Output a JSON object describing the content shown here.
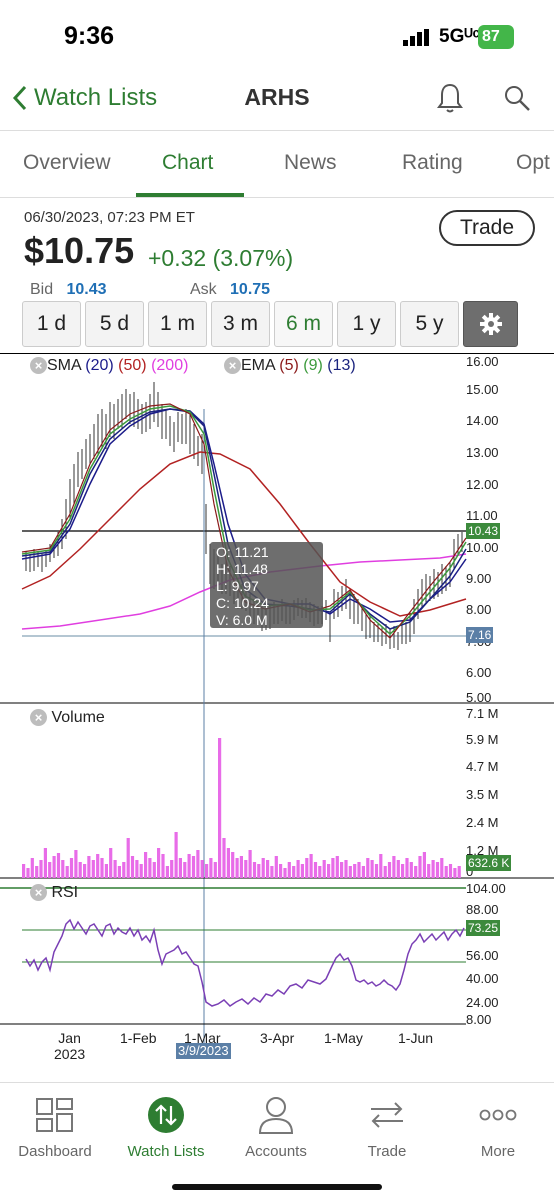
{
  "status_bar": {
    "time": "9:36",
    "network": "5Gᵁᶜ",
    "battery": "87"
  },
  "nav": {
    "back_label": "Watch Lists",
    "title": "ARHS"
  },
  "tabs": [
    "Overview",
    "Chart",
    "News",
    "Rating",
    "Opt"
  ],
  "quote": {
    "datetime": "06/30/2023, 07:23 PM ET",
    "price": "$10.75",
    "change": "+0.32",
    "change_pct": "(3.07%)",
    "trade_label": "Trade",
    "bid_label": "Bid",
    "bid": "10.43",
    "ask_label": "Ask",
    "ask": "10.75"
  },
  "ranges": [
    "1 d",
    "5 d",
    "1 m",
    "3 m",
    "6 m",
    "1 y",
    "5 y"
  ],
  "active_range": "6 m",
  "indicators": {
    "sma_label": "SMA",
    "sma_periods": [
      "(20)",
      "(50)",
      "(200)"
    ],
    "ema_label": "EMA",
    "ema_periods": [
      "(5)",
      "(9)",
      "(13)"
    ],
    "volume_label": "Volume",
    "rsi_label": "RSI"
  },
  "colors": {
    "green": "#2e7d32",
    "blue": "#1f6fb5",
    "sma20": "#1c1c8a",
    "sma50": "#b22222",
    "sma200": "#e03ee0",
    "ema5": "#8b1a1a",
    "ema9": "#3c9a3c",
    "ema13": "#1a237e",
    "volume": "#e86ce8",
    "rsi": "#7a3fb5"
  },
  "tooltip": {
    "o": "O: 11.21",
    "h": "H: 11.48",
    "l": "L: 9.97",
    "c": "C: 10.24",
    "v": "V: 6.0 M"
  },
  "crosshair_date": "3/9/2023",
  "chart_data": [
    {
      "type": "line",
      "title": "",
      "x_ticks": [
        "Jan\n2023",
        "1-Feb",
        "1-Mar",
        "3-Apr",
        "1-May",
        "1-Jun"
      ],
      "y_ticks": [
        "16.00",
        "15.00",
        "14.00",
        "13.00",
        "12.00",
        "11.00",
        "10.00",
        "9.00",
        "8.00",
        "7.00",
        "6.00",
        "5.00"
      ],
      "ylim": [
        5,
        16
      ],
      "price_tags": [
        "10.43",
        "7.16"
      ],
      "series": [
        {
          "name": "SMA (200)",
          "values": [
            7.3,
            7.5,
            7.7,
            8.1,
            8.6,
            9.2,
            9.5,
            9.6,
            9.7,
            9.8,
            9.9,
            9.9
          ]
        }
      ]
    },
    {
      "type": "bar",
      "title": "",
      "y_ticks": [
        "7.1 M",
        "5.9 M",
        "4.7 M",
        "3.5 M",
        "2.4 M",
        "1.2 M",
        "0"
      ],
      "last_value_tag": "632.6 K",
      "peak_value": "6.0 M"
    },
    {
      "type": "line",
      "title": "",
      "y_ticks": [
        "104.00",
        "88.00",
        "72.00",
        "56.00",
        "40.00",
        "24.00",
        "8.00"
      ],
      "last_value_tag": "73.25"
    }
  ],
  "tabbar": [
    {
      "label": "Dashboard",
      "icon": "dashboard-icon"
    },
    {
      "label": "Watch Lists",
      "icon": "watchlist-icon"
    },
    {
      "label": "Accounts",
      "icon": "person-icon"
    },
    {
      "label": "Trade",
      "icon": "arrows-icon"
    },
    {
      "label": "More",
      "icon": "more-icon"
    }
  ]
}
